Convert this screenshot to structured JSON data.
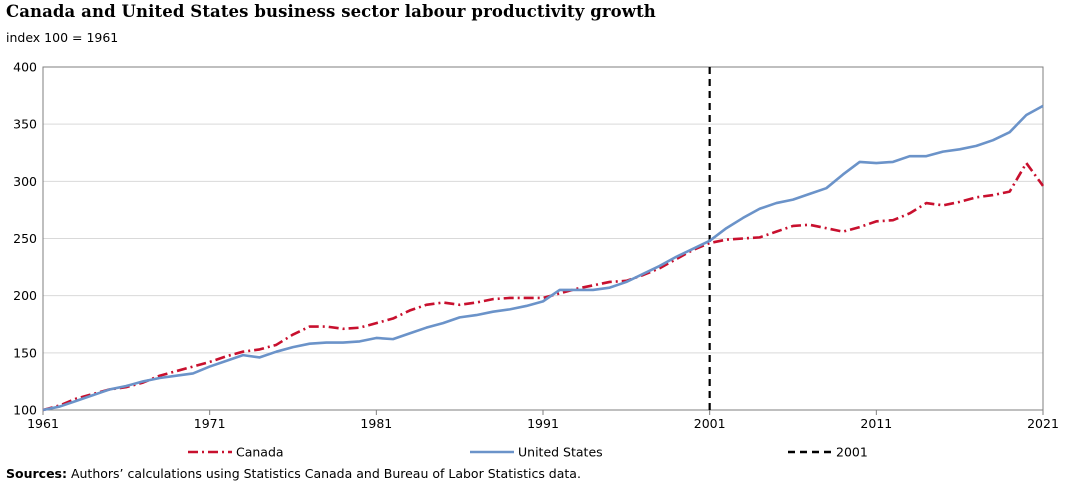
{
  "chart_data": {
    "type": "line",
    "title": "Canada and United States business sector labour productivity growth",
    "subtitle": "index 100 = 1961",
    "xlabel": "",
    "ylabel": "",
    "xlim": [
      1961,
      2021
    ],
    "ylim": [
      100,
      400
    ],
    "x_ticks": [
      "1961",
      "1971",
      "1981",
      "1991",
      "2001",
      "2011",
      "2021"
    ],
    "y_ticks": [
      "100",
      "150",
      "200",
      "250",
      "300",
      "350",
      "400"
    ],
    "grid": "horizontal",
    "legend_position": "bottom",
    "x": [
      1961,
      1962,
      1963,
      1964,
      1965,
      1966,
      1967,
      1968,
      1969,
      1970,
      1971,
      1972,
      1973,
      1974,
      1975,
      1976,
      1977,
      1978,
      1979,
      1980,
      1981,
      1982,
      1983,
      1984,
      1985,
      1986,
      1987,
      1988,
      1989,
      1990,
      1991,
      1992,
      1993,
      1994,
      1995,
      1996,
      1997,
      1998,
      1999,
      2000,
      2001,
      2002,
      2003,
      2004,
      2005,
      2006,
      2007,
      2008,
      2009,
      2010,
      2011,
      2012,
      2013,
      2014,
      2015,
      2016,
      2017,
      2018,
      2019,
      2020,
      2021
    ],
    "series": [
      {
        "name": "Canada",
        "color": "#c8102e",
        "style": "dash-dot",
        "values": [
          100,
          104,
          110,
          114,
          118,
          120,
          124,
          130,
          134,
          138,
          142,
          147,
          151,
          153,
          157,
          166,
          173,
          173,
          171,
          172,
          176,
          180,
          187,
          192,
          194,
          192,
          194,
          197,
          198,
          198,
          198,
          202,
          206,
          209,
          212,
          213,
          218,
          224,
          232,
          240,
          246,
          249,
          250,
          251,
          256,
          261,
          262,
          259,
          256,
          260,
          265,
          266,
          272,
          281,
          279,
          282,
          286,
          288,
          291,
          316,
          296
        ]
      },
      {
        "name": "United States",
        "color": "#6b93c9",
        "style": "solid",
        "values": [
          100,
          103,
          108,
          113,
          118,
          121,
          125,
          128,
          130,
          132,
          138,
          143,
          148,
          146,
          151,
          155,
          158,
          159,
          159,
          160,
          163,
          162,
          167,
          172,
          176,
          181,
          183,
          186,
          188,
          191,
          195,
          205,
          205,
          205,
          207,
          212,
          219,
          226,
          234,
          241,
          248,
          259,
          268,
          276,
          281,
          284,
          289,
          294,
          306,
          317,
          316,
          317,
          322,
          322,
          326,
          328,
          331,
          336,
          343,
          358,
          366
        ]
      }
    ],
    "reference_line": {
      "name": "2001",
      "x": 2001,
      "style": "dashed",
      "color": "#000000"
    },
    "source_label": "Sources:",
    "source_text": " Authors’ calculations using Statistics Canada and Bureau of Labor Statistics data."
  }
}
